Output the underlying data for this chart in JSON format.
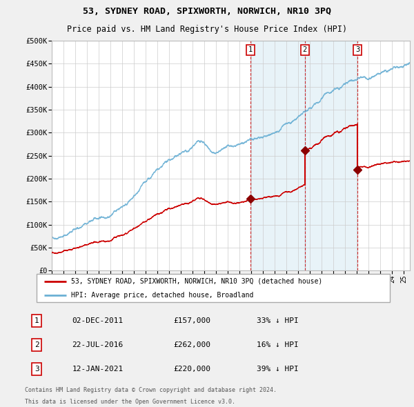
{
  "title": "53, SYDNEY ROAD, SPIXWORTH, NORWICH, NR10 3PQ",
  "subtitle": "Price paid vs. HM Land Registry's House Price Index (HPI)",
  "ytick_values": [
    0,
    50000,
    100000,
    150000,
    200000,
    250000,
    300000,
    350000,
    400000,
    450000,
    500000
  ],
  "hpi_color": "#6ab0d4",
  "price_color": "#cc0000",
  "shade_color": "#ddeeff",
  "transactions": [
    {
      "label": "1",
      "date": "02-DEC-2011",
      "price": 157000,
      "pct": "33%",
      "x_year": 2011.917
    },
    {
      "label": "2",
      "date": "22-JUL-2016",
      "price": 262000,
      "pct": "16%",
      "x_year": 2016.556
    },
    {
      "label": "3",
      "date": "12-JAN-2021",
      "price": 220000,
      "pct": "39%",
      "x_year": 2021.033
    }
  ],
  "legend_line1": "53, SYDNEY ROAD, SPIXWORTH, NORWICH, NR10 3PQ (detached house)",
  "legend_line2": "HPI: Average price, detached house, Broadland",
  "footer1": "Contains HM Land Registry data © Crown copyright and database right 2024.",
  "footer2": "This data is licensed under the Open Government Licence v3.0.",
  "xlim": [
    1995,
    2025.5
  ],
  "ylim": [
    0,
    500000
  ],
  "background_color": "#f0f0f0",
  "plot_bg": "#ffffff",
  "grid_color": "#cccccc"
}
